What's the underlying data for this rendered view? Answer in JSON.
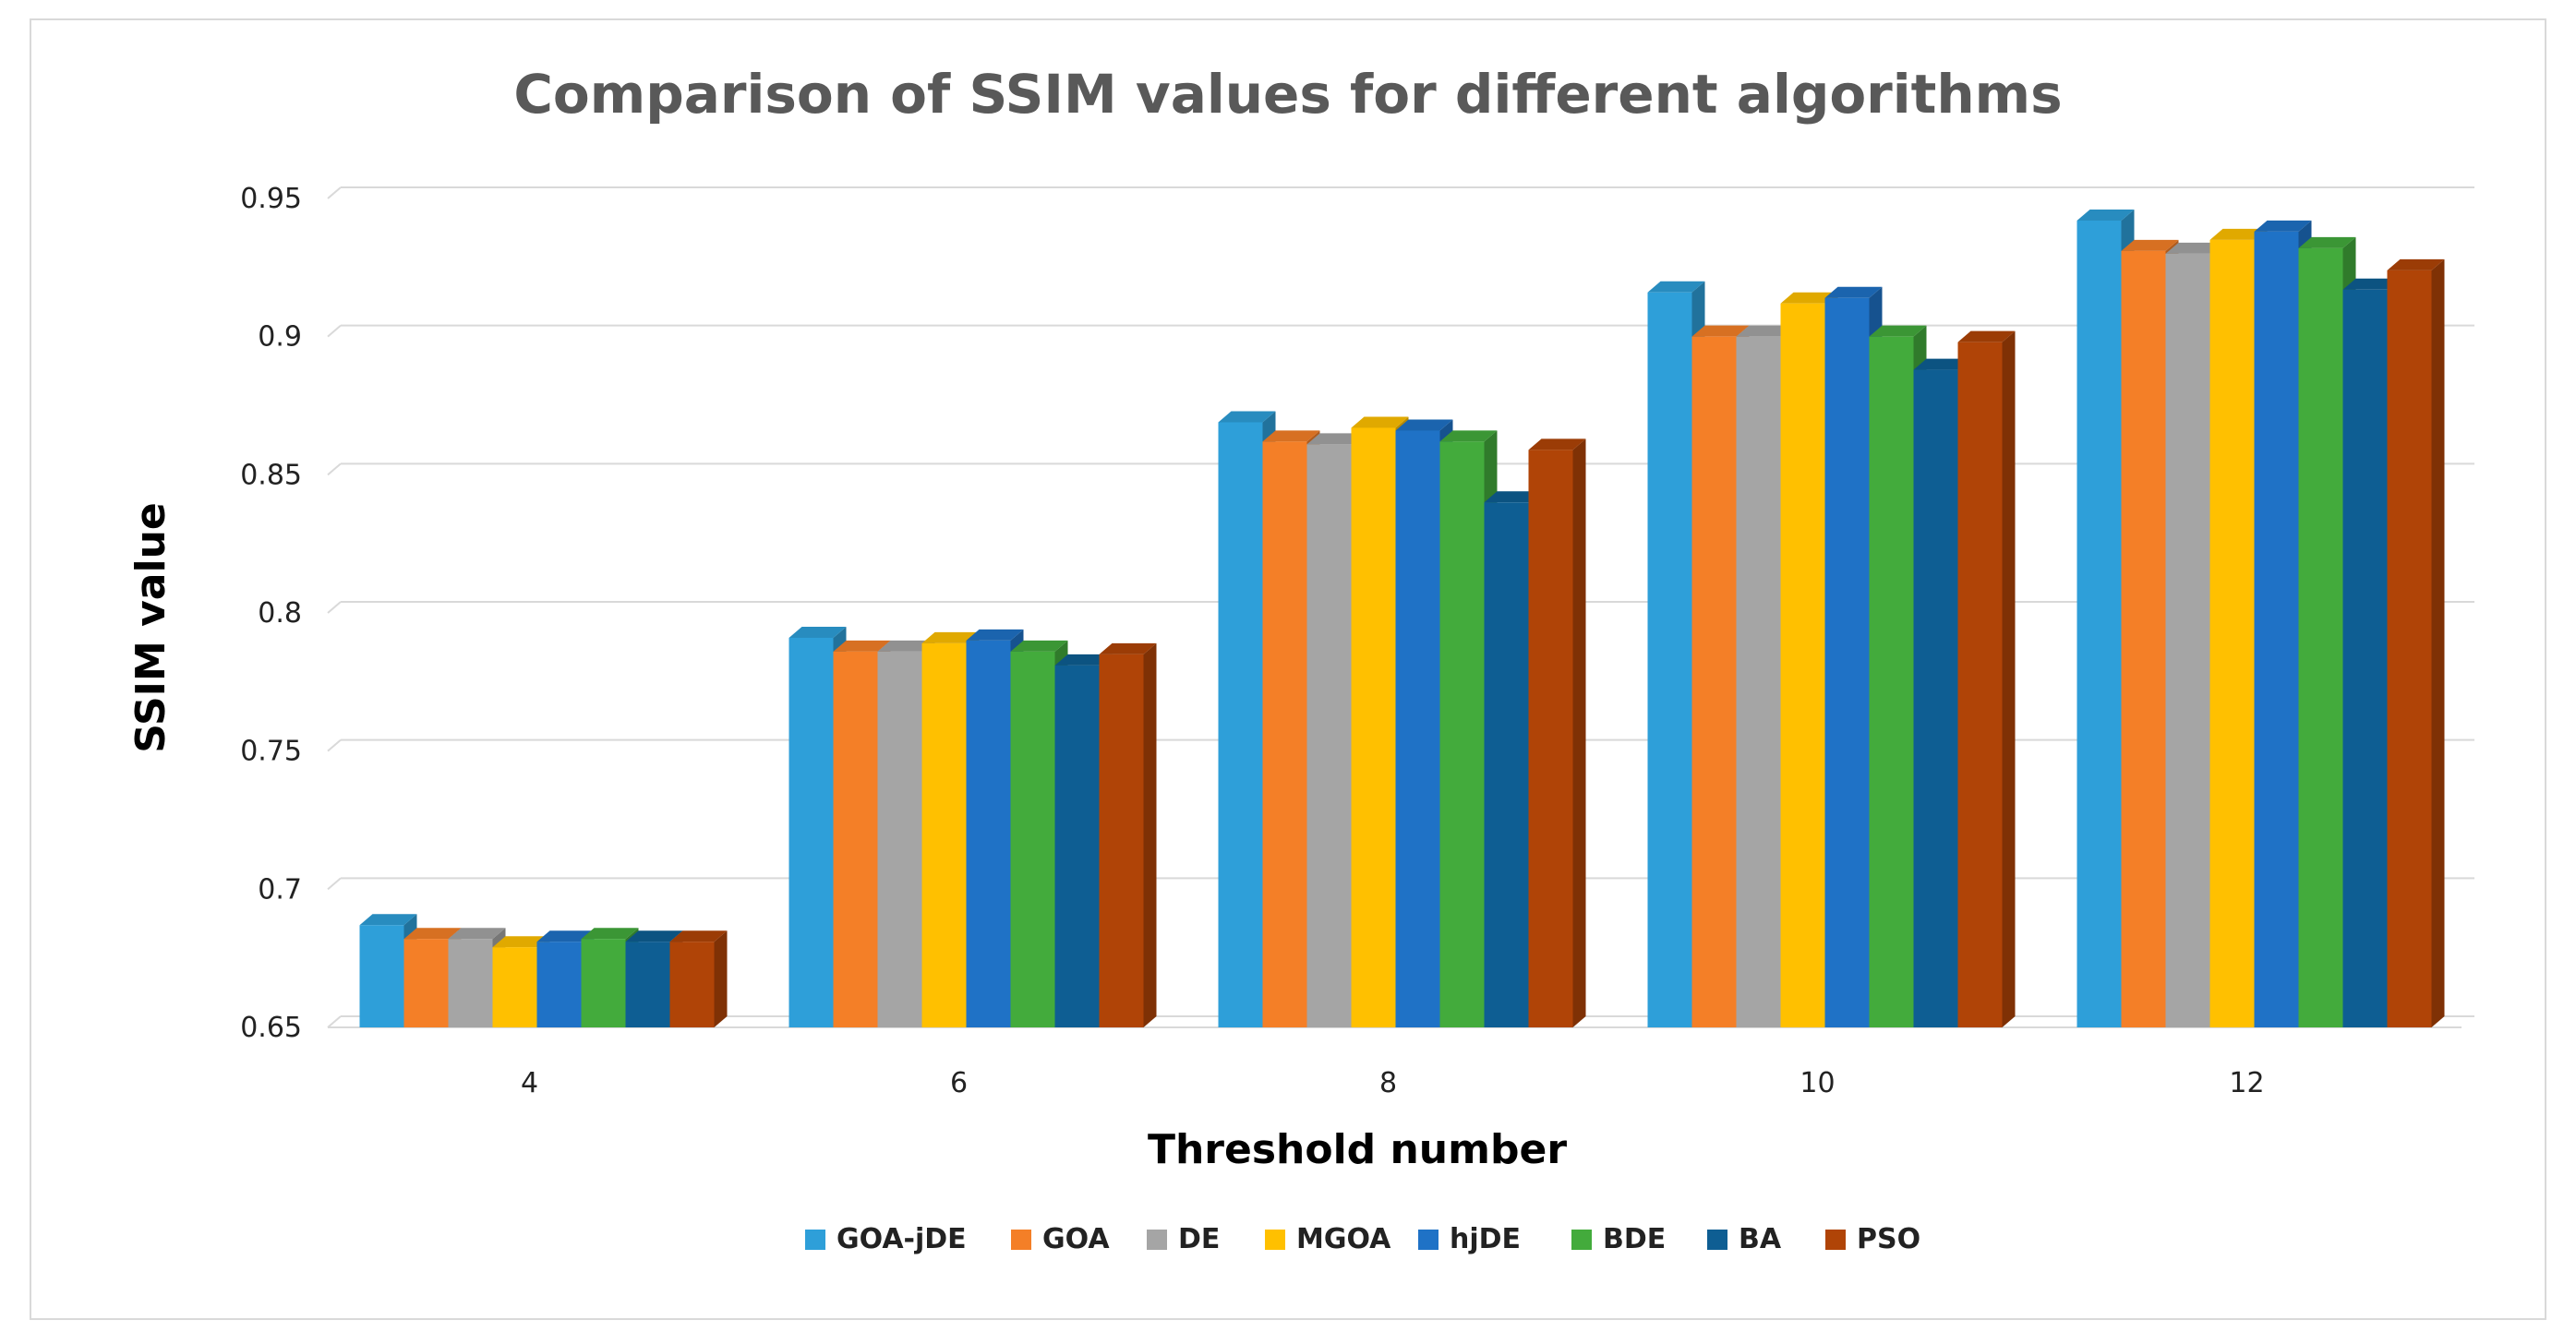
{
  "chart_data": {
    "type": "bar",
    "title": "Comparison of SSIM values for different algorithms",
    "xlabel": "Threshold number",
    "ylabel": "SSIM value",
    "ylim": [
      0.65,
      0.95
    ],
    "yticks": [
      "0.65",
      "0.7",
      "0.75",
      "0.8",
      "0.85",
      "0.9",
      "0.95"
    ],
    "ytick_values": [
      0.65,
      0.7,
      0.75,
      0.8,
      0.85,
      0.9,
      0.95
    ],
    "categories": [
      "4",
      "6",
      "8",
      "10",
      "12"
    ],
    "grid": true,
    "legend_position": "bottom",
    "series": [
      {
        "name": "GOA-jDE",
        "color": "#2e9fd9",
        "values": [
          0.687,
          0.791,
          0.869,
          0.916,
          0.942
        ]
      },
      {
        "name": "GOA",
        "color": "#f47f27",
        "values": [
          0.682,
          0.786,
          0.862,
          0.9,
          0.931
        ]
      },
      {
        "name": "DE",
        "color": "#a5a5a5",
        "values": [
          0.682,
          0.786,
          0.861,
          0.9,
          0.93
        ]
      },
      {
        "name": "MGOA",
        "color": "#ffc000",
        "values": [
          0.679,
          0.789,
          0.867,
          0.912,
          0.935
        ]
      },
      {
        "name": "hjDE",
        "color": "#1f72c6",
        "values": [
          0.681,
          0.79,
          0.866,
          0.914,
          0.938
        ]
      },
      {
        "name": "BDE",
        "color": "#43ab3c",
        "values": [
          0.682,
          0.786,
          0.862,
          0.9,
          0.932
        ]
      },
      {
        "name": "BA",
        "color": "#0e5e93",
        "values": [
          0.681,
          0.781,
          0.84,
          0.888,
          0.917
        ]
      },
      {
        "name": "PSO",
        "color": "#b04407",
        "values": [
          0.681,
          0.785,
          0.859,
          0.898,
          0.924
        ]
      }
    ]
  }
}
